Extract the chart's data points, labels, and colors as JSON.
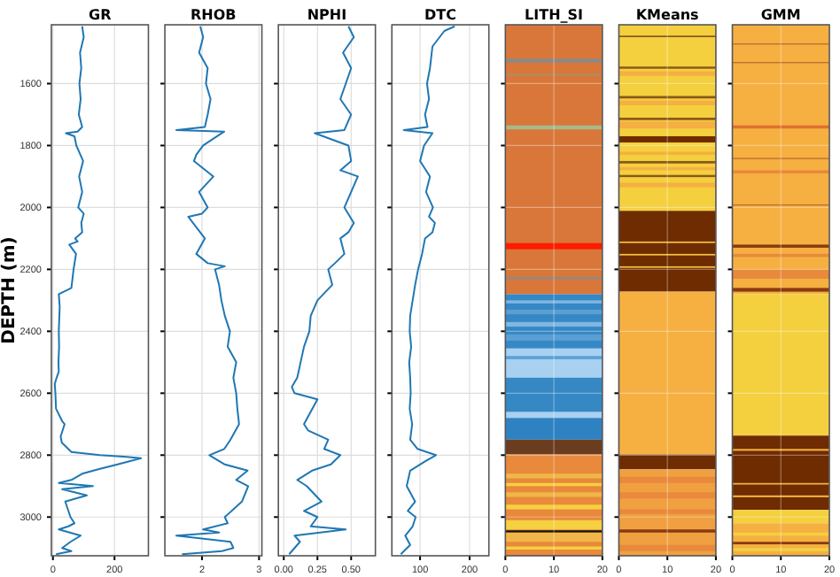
{
  "chart_data": [
    {
      "type": "line",
      "title": "GR",
      "ylabel": "DEPTH (m)",
      "xlim": [
        -5,
        310
      ],
      "xticks": [
        0,
        200
      ],
      "ylim": [
        3125,
        1410
      ],
      "yticks": [
        1600,
        1800,
        2000,
        2200,
        2400,
        2600,
        2800,
        3000
      ],
      "grid": true,
      "series": [
        {
          "color": "#1f77b4",
          "x": [
            95,
            100,
            88,
            92,
            86,
            90,
            84,
            95,
            80,
            42,
            70,
            76,
            98,
            85,
            95,
            82,
            100,
            92,
            95,
            72,
            80,
            53,
            75,
            67,
            60,
            19,
            22,
            19,
            20,
            18,
            19,
            12,
            6,
            8,
            10,
            30,
            38,
            25,
            29,
            60,
            152,
            230,
            286,
            210,
            150,
            95,
            60,
            19,
            130,
            30,
            110,
            40,
            57,
            70,
            50,
            19,
            90,
            57,
            30,
            60,
            10
          ],
          "values": [
            1415,
            1450,
            1500,
            1550,
            1600,
            1650,
            1700,
            1740,
            1755,
            1760,
            1770,
            1800,
            1850,
            1900,
            1950,
            2000,
            2020,
            2050,
            2080,
            2100,
            2110,
            2120,
            2150,
            2200,
            2260,
            2280,
            2320,
            2400,
            2450,
            2500,
            2530,
            2550,
            2570,
            2600,
            2650,
            2690,
            2700,
            2740,
            2760,
            2790,
            2800,
            2805,
            2810,
            2830,
            2845,
            2860,
            2880,
            2890,
            2900,
            2910,
            2930,
            2950,
            3000,
            3020,
            3030,
            3040,
            3060,
            3080,
            3100,
            3110,
            3120
          ]
        }
      ]
    },
    {
      "type": "line",
      "title": "RHOB",
      "xlim": [
        1.35,
        3.05
      ],
      "xticks": [
        2,
        3
      ],
      "ylim": [
        3125,
        1410
      ],
      "yticks": [
        1600,
        1800,
        2000,
        2200,
        2400,
        2600,
        2800,
        3000
      ],
      "grid": true,
      "tick_labels": "x",
      "series": [
        {
          "color": "#1f77b4",
          "x": [
            1.97,
            2.02,
            1.95,
            2.1,
            2.07,
            2.15,
            2.1,
            2.05,
            1.55,
            2.39,
            2.02,
            1.9,
            1.86,
            2.2,
            1.95,
            2.1,
            2.0,
            1.76,
            2.05,
            1.9,
            2.1,
            2.4,
            2.23,
            2.3,
            2.34,
            2.4,
            2.49,
            2.45,
            2.6,
            2.55,
            2.6,
            2.62,
            2.65,
            2.5,
            2.39,
            2.13,
            2.4,
            2.8,
            2.6,
            2.81,
            2.7,
            2.4,
            2.45,
            2.02,
            2.3,
            1.55,
            2.5,
            2.55,
            2.35,
            1.65
          ],
          "values": [
            1415,
            1450,
            1500,
            1550,
            1600,
            1650,
            1700,
            1740,
            1750,
            1755,
            1800,
            1830,
            1850,
            1900,
            1950,
            2000,
            2020,
            2030,
            2100,
            2150,
            2180,
            2190,
            2200,
            2250,
            2300,
            2350,
            2400,
            2450,
            2500,
            2550,
            2600,
            2650,
            2700,
            2750,
            2780,
            2800,
            2830,
            2850,
            2880,
            2900,
            2950,
            3000,
            3020,
            3040,
            3050,
            3060,
            3080,
            3100,
            3110,
            3120
          ]
        }
      ]
    },
    {
      "type": "line",
      "title": "NPHI",
      "xlim": [
        -0.04,
        0.68
      ],
      "xticks": [
        {
          "value": 0,
          "label": "0.00"
        },
        0.25,
        {
          "value": 0.5,
          "label": "0.50"
        }
      ],
      "ylim": [
        3125,
        1410
      ],
      "yticks": [
        1600,
        1800,
        2000,
        2200,
        2400,
        2600,
        2800,
        3000
      ],
      "grid": true,
      "tick_labels": "x",
      "series": [
        {
          "color": "#1f77b4",
          "x": [
            0.48,
            0.52,
            0.44,
            0.5,
            0.46,
            0.42,
            0.5,
            0.45,
            0.23,
            0.48,
            0.5,
            0.42,
            0.55,
            0.5,
            0.45,
            0.52,
            0.48,
            0.42,
            0.45,
            0.38,
            0.33,
            0.36,
            0.25,
            0.2,
            0.19,
            0.15,
            0.125,
            0.1,
            0.06,
            0.08,
            0.25,
            0.15,
            0.18,
            0.33,
            0.3,
            0.42,
            0.35,
            0.21,
            0.1,
            0.17,
            0.28,
            0.15,
            0.25,
            0.2,
            0.46,
            0.08,
            0.12,
            0.04
          ],
          "values": [
            1415,
            1450,
            1500,
            1550,
            1600,
            1650,
            1700,
            1750,
            1760,
            1800,
            1850,
            1880,
            1900,
            1950,
            2000,
            2050,
            2080,
            2100,
            2150,
            2180,
            2200,
            2250,
            2300,
            2350,
            2400,
            2450,
            2500,
            2550,
            2580,
            2600,
            2620,
            2700,
            2720,
            2750,
            2780,
            2800,
            2830,
            2850,
            2880,
            2900,
            2950,
            2980,
            3000,
            3030,
            3040,
            3060,
            3080,
            3120
          ]
        }
      ]
    },
    {
      "type": "line",
      "title": "DTC",
      "xlim": [
        43,
        239
      ],
      "xticks": [
        100,
        200
      ],
      "ylim": [
        3125,
        1410
      ],
      "yticks": [
        1600,
        1800,
        2000,
        2200,
        2400,
        2600,
        2800,
        3000
      ],
      "grid": true,
      "tick_labels": "x",
      "series": [
        {
          "color": "#1f77b4",
          "x": [
            170,
            149,
            125,
            120,
            114,
            118,
            110,
            115,
            67,
            125,
            108,
            100,
            120,
            112,
            126,
            118,
            130,
            125,
            110,
            104,
            96,
            90,
            85,
            80,
            79,
            82,
            78,
            80,
            81,
            79,
            84,
            80,
            95,
            132,
            110,
            80,
            73,
            90,
            75,
            91,
            85,
            70,
            80,
            61
          ],
          "values": [
            1415,
            1430,
            1480,
            1550,
            1600,
            1650,
            1700,
            1740,
            1750,
            1760,
            1800,
            1850,
            1900,
            1950,
            2000,
            2030,
            2050,
            2080,
            2100,
            2150,
            2200,
            2250,
            2300,
            2350,
            2400,
            2450,
            2500,
            2550,
            2600,
            2650,
            2700,
            2750,
            2780,
            2800,
            2820,
            2850,
            2900,
            2950,
            2980,
            3000,
            3030,
            3060,
            3090,
            3120
          ]
        }
      ]
    },
    {
      "type": "line",
      "title": "LITH_SI",
      "xlim": [
        0,
        20
      ],
      "xticks": [
        0,
        10,
        20
      ],
      "ylim": [
        3125,
        1410
      ],
      "yticks": [
        1600,
        1800,
        2000,
        2200,
        2400,
        2600,
        2800,
        3000
      ],
      "grid": true,
      "tick_labels": "x",
      "bands": [
        {
          "axis": "y",
          "from": 1410,
          "to": 2280,
          "color": "#d9773a"
        },
        {
          "axis": "y",
          "from": 1520,
          "to": 1532,
          "color": "#8a8a8a"
        },
        {
          "axis": "y",
          "from": 1568,
          "to": 1576,
          "color": "#b9885a"
        },
        {
          "axis": "y",
          "from": 1735,
          "to": 1748,
          "color": "#a7b98a"
        },
        {
          "axis": "y",
          "from": 2115,
          "to": 2135,
          "color": "#ff1a00"
        },
        {
          "axis": "y",
          "from": 2225,
          "to": 2232,
          "color": "#8a8a8a"
        },
        {
          "axis": "y",
          "from": 2280,
          "to": 2680,
          "color": "#3588c4"
        },
        {
          "axis": "y",
          "from": 2300,
          "to": 2310,
          "color": "#7fb6e3"
        },
        {
          "axis": "y",
          "from": 2330,
          "to": 2345,
          "color": "#5a9fd4"
        },
        {
          "axis": "y",
          "from": 2370,
          "to": 2385,
          "color": "#7fb6e3"
        },
        {
          "axis": "y",
          "from": 2410,
          "to": 2430,
          "color": "#5a9fd4"
        },
        {
          "axis": "y",
          "from": 2455,
          "to": 2550,
          "color": "#a8d0f0"
        },
        {
          "axis": "y",
          "from": 2480,
          "to": 2490,
          "color": "#5a9fd4"
        },
        {
          "axis": "y",
          "from": 2660,
          "to": 2680,
          "color": "#a8d0f0"
        },
        {
          "axis": "y",
          "from": 2680,
          "to": 2750,
          "color": "#2f82c2"
        },
        {
          "axis": "y",
          "from": 2750,
          "to": 2798,
          "color": "#6b3d1f"
        },
        {
          "axis": "y",
          "from": 2798,
          "to": 3125,
          "color": "#e8893c"
        },
        {
          "axis": "y",
          "from": 2860,
          "to": 2875,
          "color": "#f0b648"
        },
        {
          "axis": "y",
          "from": 2890,
          "to": 2900,
          "color": "#f5d040"
        },
        {
          "axis": "y",
          "from": 2920,
          "to": 2935,
          "color": "#f0b648"
        },
        {
          "axis": "y",
          "from": 2960,
          "to": 2975,
          "color": "#f5d040"
        },
        {
          "axis": "y",
          "from": 3010,
          "to": 3040,
          "color": "#f5d040"
        },
        {
          "axis": "y",
          "from": 3043,
          "to": 3050,
          "color": "#111111"
        },
        {
          "axis": "y",
          "from": 3050,
          "to": 3080,
          "color": "#f0b648"
        },
        {
          "axis": "y",
          "from": 3095,
          "to": 3105,
          "color": "#f5d040"
        }
      ]
    },
    {
      "type": "line",
      "title": "KMeans",
      "xlim": [
        0,
        20
      ],
      "xticks": [
        0,
        10,
        20
      ],
      "ylim": [
        3125,
        1410
      ],
      "yticks": [
        1600,
        1800,
        2000,
        2200,
        2400,
        2600,
        2800,
        3000
      ],
      "grid": true,
      "tick_labels": "x",
      "bands": [
        {
          "axis": "y",
          "from": 1410,
          "to": 2011,
          "color": "#f4d03f"
        },
        {
          "axis": "y",
          "from": 1445,
          "to": 1450,
          "color": "#8a5a1a"
        },
        {
          "axis": "y",
          "from": 1545,
          "to": 1552,
          "color": "#8a5a1a"
        },
        {
          "axis": "y",
          "from": 1560,
          "to": 1575,
          "color": "#f5b041"
        },
        {
          "axis": "y",
          "from": 1640,
          "to": 1648,
          "color": "#8a5a1a"
        },
        {
          "axis": "y",
          "from": 1655,
          "to": 1670,
          "color": "#f5b041"
        },
        {
          "axis": "y",
          "from": 1710,
          "to": 1718,
          "color": "#8a5a1a"
        },
        {
          "axis": "y",
          "from": 1722,
          "to": 1745,
          "color": "#f5b041"
        },
        {
          "axis": "y",
          "from": 1770,
          "to": 1790,
          "color": "#6e2c00"
        },
        {
          "axis": "y",
          "from": 1820,
          "to": 1830,
          "color": "#f5b041"
        },
        {
          "axis": "y",
          "from": 1850,
          "to": 1858,
          "color": "#8a5a1a"
        },
        {
          "axis": "y",
          "from": 1870,
          "to": 1880,
          "color": "#f5b041"
        },
        {
          "axis": "y",
          "from": 1895,
          "to": 1902,
          "color": "#8a5a1a"
        },
        {
          "axis": "y",
          "from": 1920,
          "to": 1935,
          "color": "#f5b041"
        },
        {
          "axis": "y",
          "from": 2011,
          "to": 2272,
          "color": "#6e2c00"
        },
        {
          "axis": "y",
          "from": 2110,
          "to": 2115,
          "color": "#f4c040"
        },
        {
          "axis": "y",
          "from": 2150,
          "to": 2155,
          "color": "#f4c040"
        },
        {
          "axis": "y",
          "from": 2190,
          "to": 2195,
          "color": "#f4c040"
        },
        {
          "axis": "y",
          "from": 2272,
          "to": 2798,
          "color": "#f5b041"
        },
        {
          "axis": "y",
          "from": 2798,
          "to": 2846,
          "color": "#6e2c00"
        },
        {
          "axis": "y",
          "from": 2846,
          "to": 3125,
          "color": "#f0a040"
        },
        {
          "axis": "y",
          "from": 2870,
          "to": 2890,
          "color": "#e8893c"
        },
        {
          "axis": "y",
          "from": 2920,
          "to": 2940,
          "color": "#e8893c"
        },
        {
          "axis": "y",
          "from": 2975,
          "to": 2990,
          "color": "#e8893c"
        },
        {
          "axis": "y",
          "from": 3040,
          "to": 3050,
          "color": "#8a3a10"
        },
        {
          "axis": "y",
          "from": 3090,
          "to": 3110,
          "color": "#e8893c"
        }
      ]
    },
    {
      "type": "line",
      "title": "GMM",
      "xlim": [
        0,
        20
      ],
      "xticks": [
        0,
        10,
        20
      ],
      "ylim": [
        3125,
        1410
      ],
      "yticks": [
        1600,
        1800,
        2000,
        2200,
        2400,
        2600,
        2800,
        3000
      ],
      "grid": true,
      "tick_labels": "x",
      "bands": [
        {
          "axis": "y",
          "from": 1410,
          "to": 2280,
          "color": "#f5b041"
        },
        {
          "axis": "y",
          "from": 1470,
          "to": 1474,
          "color": "#c07030"
        },
        {
          "axis": "y",
          "from": 1530,
          "to": 1534,
          "color": "#c07030"
        },
        {
          "axis": "y",
          "from": 1735,
          "to": 1745,
          "color": "#e07030"
        },
        {
          "axis": "y",
          "from": 1840,
          "to": 1844,
          "color": "#c07030"
        },
        {
          "axis": "y",
          "from": 1880,
          "to": 1890,
          "color": "#e8893c"
        },
        {
          "axis": "y",
          "from": 1990,
          "to": 1994,
          "color": "#c07030"
        },
        {
          "axis": "y",
          "from": 2120,
          "to": 2130,
          "color": "#8a3a10"
        },
        {
          "axis": "y",
          "from": 2150,
          "to": 2160,
          "color": "#e8893c"
        },
        {
          "axis": "y",
          "from": 2200,
          "to": 2230,
          "color": "#e8893c"
        },
        {
          "axis": "y",
          "from": 2260,
          "to": 2272,
          "color": "#8a3a10"
        },
        {
          "axis": "y",
          "from": 2280,
          "to": 2737,
          "color": "#f4d03f"
        },
        {
          "axis": "y",
          "from": 2737,
          "to": 2977,
          "color": "#6e2c00"
        },
        {
          "axis": "y",
          "from": 2780,
          "to": 2786,
          "color": "#f5b041"
        },
        {
          "axis": "y",
          "from": 2890,
          "to": 2895,
          "color": "#f5b041"
        },
        {
          "axis": "y",
          "from": 2930,
          "to": 2936,
          "color": "#f5b041"
        },
        {
          "axis": "y",
          "from": 2977,
          "to": 3020,
          "color": "#f4d03f"
        },
        {
          "axis": "y",
          "from": 3020,
          "to": 3125,
          "color": "#f5b041"
        },
        {
          "axis": "y",
          "from": 3050,
          "to": 3060,
          "color": "#f4d03f"
        },
        {
          "axis": "y",
          "from": 3080,
          "to": 3088,
          "color": "#8a3a10"
        },
        {
          "axis": "y",
          "from": 3100,
          "to": 3110,
          "color": "#f4d03f"
        }
      ]
    }
  ]
}
